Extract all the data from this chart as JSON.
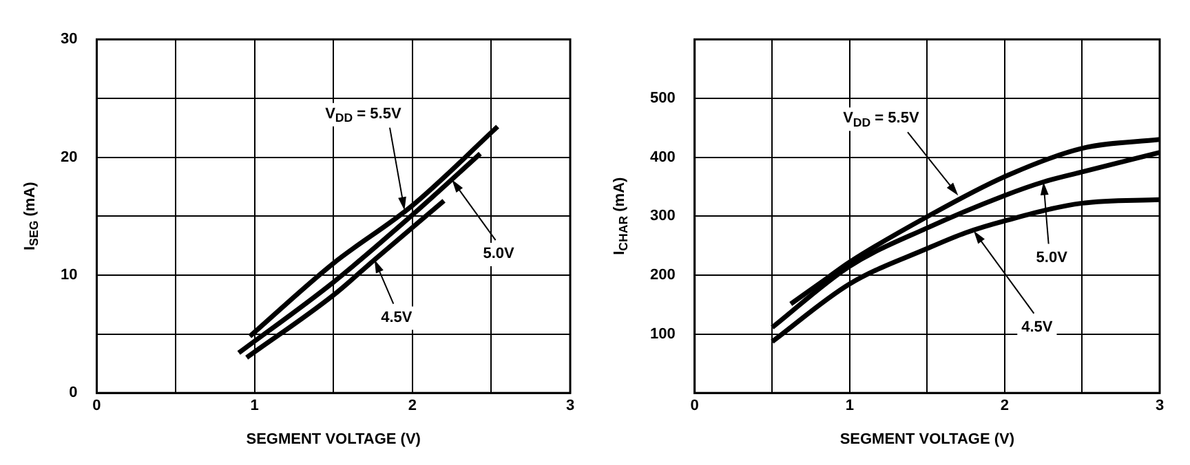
{
  "chart_data": [
    {
      "type": "line",
      "xlabel": "SEGMENT VOLTAGE (V)",
      "ylabel": "I$_{SEG}$ (mA)",
      "xlim": [
        0,
        3
      ],
      "xticks": [
        0,
        {
          "value": 0.5,
          "label": null
        },
        1,
        {
          "value": 1.5,
          "label": null
        },
        2,
        {
          "value": 2.5,
          "label": null
        },
        3
      ],
      "ylim": [
        0,
        30
      ],
      "yticks": [
        0,
        {
          "value": 5,
          "label": null
        },
        10,
        {
          "value": 15,
          "label": null
        },
        20,
        {
          "value": 25,
          "label": null
        },
        30
      ],
      "grid": true,
      "marker": "none",
      "series": [
        {
          "color": "#000000",
          "x": [
            0.97,
            1.5,
            2,
            2.54
          ],
          "values": [
            4.8,
            11,
            15.9,
            22.6
          ]
        },
        {
          "color": "#000000",
          "x": [
            0.9,
            1.5,
            2,
            2.43
          ],
          "values": [
            3.4,
            9.4,
            15.1,
            20.3
          ]
        },
        {
          "color": "#000000",
          "x": [
            0.95,
            1.5,
            1.76,
            2.2
          ],
          "values": [
            3,
            8.3,
            11.3,
            16.3
          ]
        }
      ],
      "annotations": [
        {
          "text": "V$_{DD}$ = 5.5V",
          "x": 1.95,
          "y": 15.5
        },
        {
          "text": "5.0V",
          "x": 2.25,
          "y": 18.1
        },
        {
          "text": "4.5V",
          "x": 1.76,
          "y": 11.3
        }
      ]
    },
    {
      "type": "line",
      "xlabel": "SEGMENT VOLTAGE (V)",
      "ylabel": "I$_{CHAR}$ (mA)",
      "xlim": [
        0,
        3
      ],
      "xticks": [
        0,
        {
          "value": 0.5,
          "label": null
        },
        1,
        {
          "value": 1.5,
          "label": null
        },
        2,
        {
          "value": 2.5,
          "label": null
        },
        3
      ],
      "ylim": [
        0,
        600
      ],
      "yticks": [
        {
          "value": 0,
          "label": null
        },
        100,
        200,
        300,
        400,
        500,
        {
          "value": 600,
          "label": null
        }
      ],
      "grid": true,
      "marker": "none",
      "series": [
        {
          "color": "#000000",
          "x": [
            0.62,
            0.85,
            1,
            1.5,
            2,
            2.5,
            3
          ],
          "values": [
            151,
            194,
            222,
            299,
            367,
            415,
            430
          ]
        },
        {
          "color": "#000000",
          "x": [
            0.5,
            1,
            1.5,
            2,
            2.25,
            2.5,
            3
          ],
          "values": [
            111,
            215,
            280,
            335,
            358,
            375,
            408
          ]
        },
        {
          "color": "#000000",
          "x": [
            0.5,
            1,
            1.5,
            1.75,
            2,
            2.5,
            3
          ],
          "values": [
            87,
            185,
            245,
            272,
            292,
            322,
            328
          ]
        }
      ],
      "annotations": [
        {
          "text": "V$_{DD}$ = 5.5V",
          "x": 1.7,
          "y": 335
        },
        {
          "text": "5.0V",
          "x": 2.25,
          "y": 358
        },
        {
          "text": "4.5V",
          "x": 1.8,
          "y": 275
        }
      ]
    }
  ]
}
